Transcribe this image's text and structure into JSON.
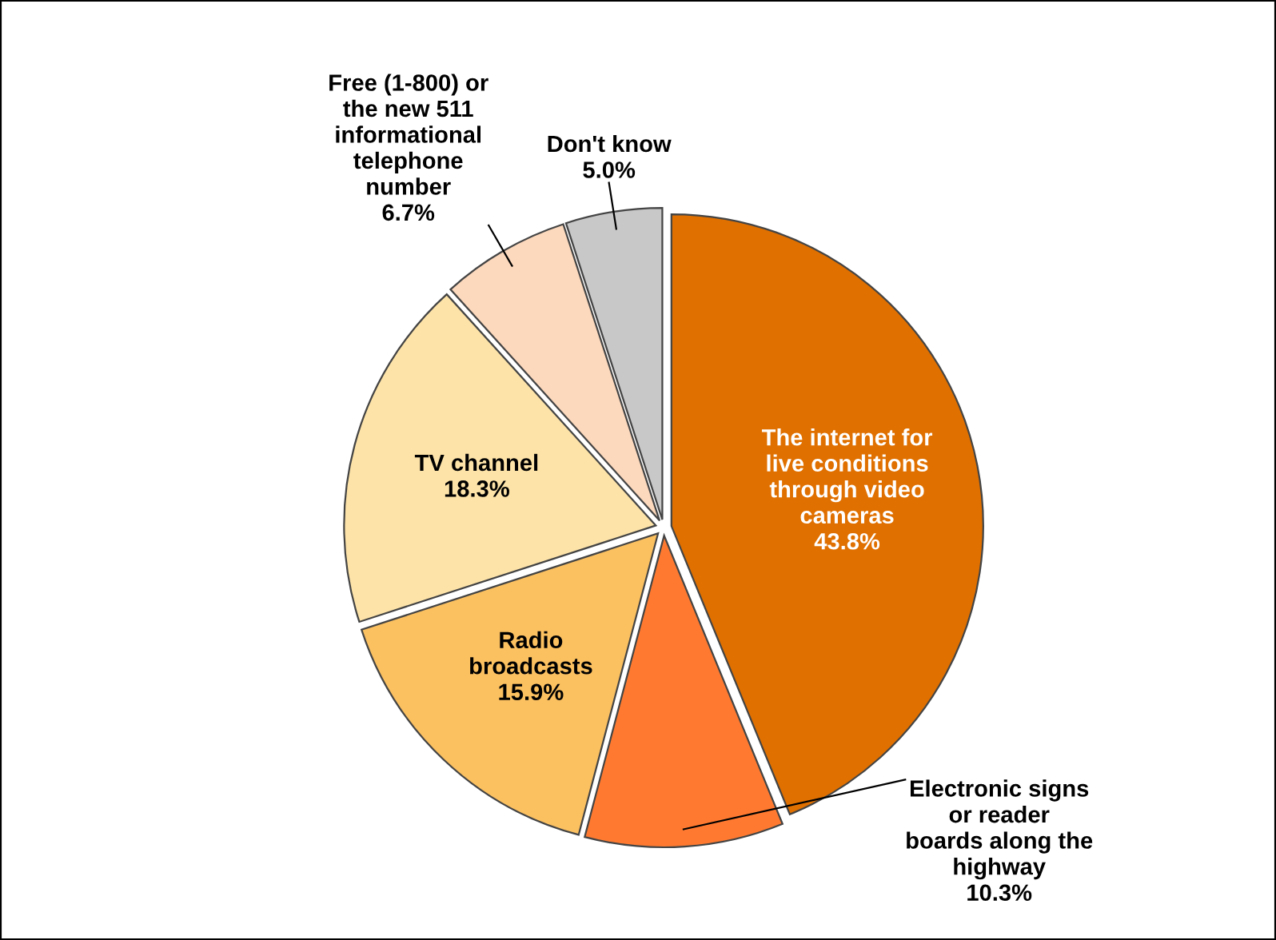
{
  "chart_data": {
    "type": "pie",
    "categories": [
      "The internet for\nlive conditions\nthrough video\ncameras",
      "Electronic signs\nor reader\nboards along the\nhighway",
      "Radio\nbroadcasts",
      "TV channel",
      "Free (1-800) or\nthe new 511\ninformational\ntelephone\nnumber",
      "Don't know"
    ],
    "values": [
      43.8,
      10.3,
      15.9,
      18.3,
      6.7,
      5.0
    ],
    "colors": [
      "#e07000",
      "#ff7a30",
      "#fbc060",
      "#fde3a8",
      "#fcd8bc",
      "#c8c8c8"
    ],
    "value_labels": [
      "43.8%",
      "10.3%",
      "15.9%",
      "18.3%",
      "6.7%",
      "5.0%"
    ]
  }
}
